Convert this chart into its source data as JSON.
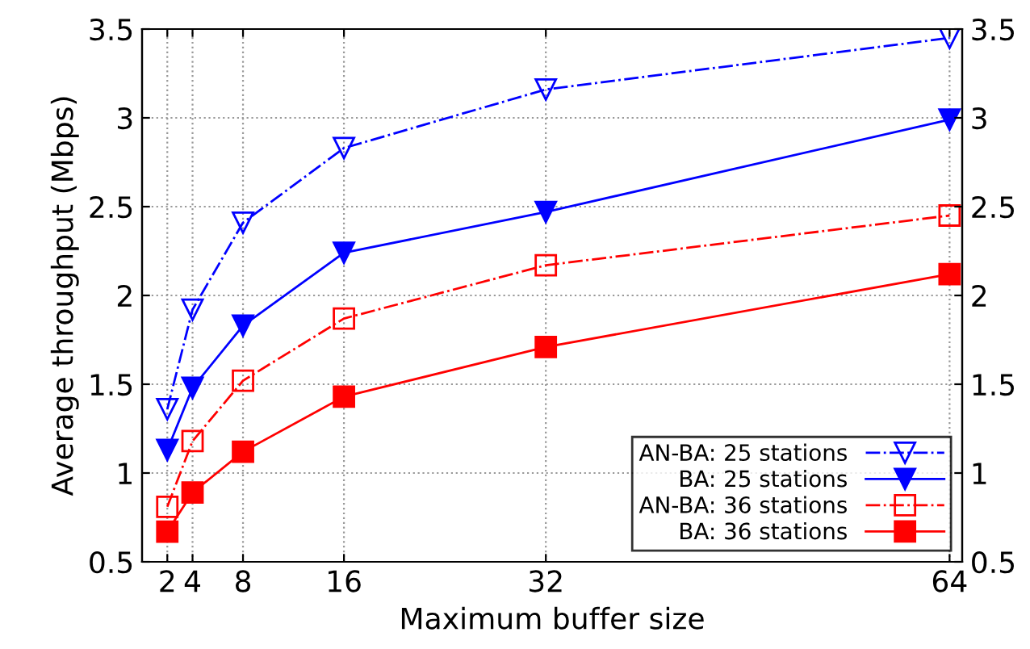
{
  "chart_data": {
    "type": "line",
    "xlabel": "Maximum buffer size",
    "ylabel": "Average throughput (Mbps)",
    "x": [
      2,
      4,
      8,
      16,
      32,
      64
    ],
    "xlim": [
      0,
      65
    ],
    "xticks": [
      2,
      4,
      8,
      16,
      32,
      64
    ],
    "ylim": [
      0.5,
      3.5
    ],
    "yticks": [
      0.5,
      1,
      1.5,
      2,
      2.5,
      3,
      3.5
    ],
    "y2lim": [
      0.5,
      3.5
    ],
    "y2ticks": [
      0.5,
      1,
      1.5,
      2,
      2.5,
      3,
      3.5
    ],
    "grid": true,
    "legend": "bottom right",
    "series": [
      {
        "name": "AN-BA: 25 stations",
        "color": "#0000ff",
        "values": [
          1.36,
          1.92,
          2.41,
          2.83,
          3.16,
          3.45
        ],
        "marker": "triangle_down_open",
        "line_style": "dashdot"
      },
      {
        "name": "BA: 25 stations",
        "color": "#0000ff",
        "values": [
          1.13,
          1.48,
          1.83,
          2.24,
          2.47,
          2.99
        ],
        "marker": "triangle_down",
        "line_style": "solid"
      },
      {
        "name": "AN-BA: 36 stations",
        "color": "#ff0000",
        "values": [
          0.81,
          1.18,
          1.52,
          1.87,
          2.17,
          2.45
        ],
        "marker": "square_open",
        "line_style": "dashdot"
      },
      {
        "name": "BA: 36 stations",
        "color": "#ff0000",
        "values": [
          0.67,
          0.89,
          1.12,
          1.43,
          1.71,
          2.12
        ],
        "marker": "square",
        "line_style": "solid"
      }
    ]
  }
}
